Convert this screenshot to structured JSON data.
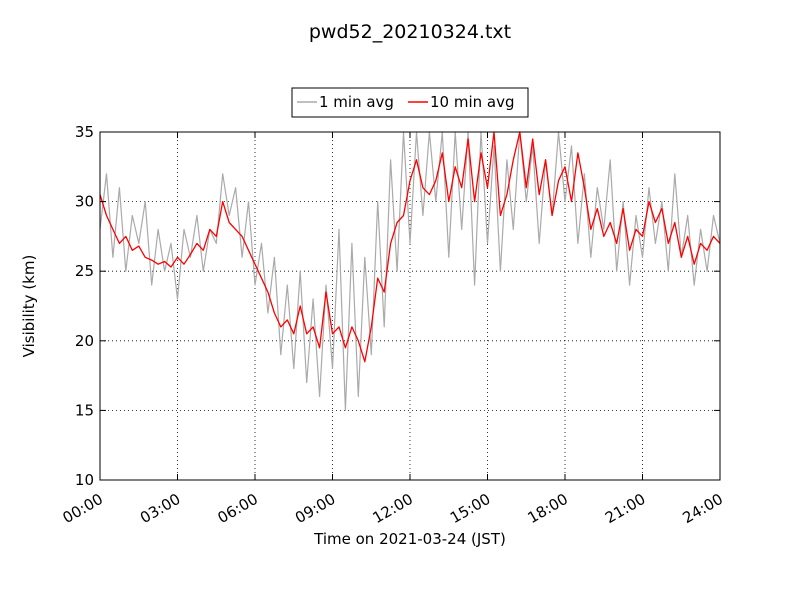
{
  "chart_data": {
    "type": "line",
    "title": "pwd52_20210324.txt",
    "xlabel": "Time on 2021-03-24 (JST)",
    "ylabel": "Visibility (km)",
    "x_unit": "hours",
    "xlim": [
      0,
      24
    ],
    "ylim": [
      10,
      35
    ],
    "x_ticks": [
      0,
      3,
      6,
      9,
      12,
      15,
      18,
      21,
      24
    ],
    "x_tick_labels": [
      "00:00",
      "03:00",
      "06:00",
      "09:00",
      "12:00",
      "15:00",
      "18:00",
      "21:00",
      "24:00"
    ],
    "y_ticks": [
      10,
      15,
      20,
      25,
      30,
      35
    ],
    "y_tick_labels": [
      "10",
      "15",
      "20",
      "25",
      "30",
      "35"
    ],
    "grid": true,
    "legend_placement": "top-center",
    "series": [
      {
        "name": "1 min avg",
        "color": "#aaaaaa",
        "x": [
          0,
          0.25,
          0.5,
          0.75,
          1,
          1.25,
          1.5,
          1.75,
          2,
          2.25,
          2.5,
          2.75,
          3,
          3.25,
          3.5,
          3.75,
          4,
          4.25,
          4.5,
          4.75,
          5,
          5.25,
          5.5,
          5.75,
          6,
          6.25,
          6.5,
          6.75,
          7,
          7.25,
          7.5,
          7.75,
          8,
          8.25,
          8.5,
          8.75,
          9,
          9.25,
          9.5,
          9.75,
          10,
          10.25,
          10.5,
          10.75,
          11,
          11.25,
          11.5,
          11.75,
          12,
          12.25,
          12.5,
          12.75,
          13,
          13.25,
          13.5,
          13.75,
          14,
          14.25,
          14.5,
          14.75,
          15,
          15.25,
          15.5,
          15.75,
          16,
          16.25,
          16.5,
          16.75,
          17,
          17.25,
          17.5,
          17.75,
          18,
          18.25,
          18.5,
          18.75,
          19,
          19.25,
          19.5,
          19.75,
          20,
          20.25,
          20.5,
          20.75,
          21,
          21.25,
          21.5,
          21.75,
          22,
          22.25,
          22.5,
          22.75,
          23,
          23.25,
          23.5,
          23.75,
          24
        ],
        "y": [
          28,
          32,
          26,
          31,
          25,
          29,
          27,
          30,
          24,
          28,
          25,
          27,
          23,
          28,
          26,
          29,
          25,
          28,
          27,
          32,
          29,
          31,
          26,
          30,
          24,
          27,
          22,
          26,
          19,
          24,
          18,
          25,
          17,
          23,
          16,
          24,
          18,
          28,
          15,
          27,
          16,
          26,
          19,
          30,
          21,
          33,
          25,
          35,
          27,
          35,
          29,
          35,
          30,
          35,
          26,
          35,
          28,
          35,
          24,
          35,
          27,
          34,
          25,
          33,
          28,
          35,
          30,
          34,
          27,
          33,
          29,
          35,
          30,
          34,
          27,
          32,
          26,
          31,
          28,
          33,
          25,
          30,
          24,
          29,
          26,
          31,
          27,
          30,
          25,
          32,
          26,
          29,
          24,
          28,
          25,
          29,
          27
        ],
        "line_width": 1.2
      },
      {
        "name": "10 min avg",
        "color": "#ff0000",
        "x": [
          0,
          0.25,
          0.5,
          0.75,
          1,
          1.25,
          1.5,
          1.75,
          2,
          2.25,
          2.5,
          2.75,
          3,
          3.25,
          3.5,
          3.75,
          4,
          4.25,
          4.5,
          4.75,
          5,
          5.25,
          5.5,
          5.75,
          6,
          6.25,
          6.5,
          6.75,
          7,
          7.25,
          7.5,
          7.75,
          8,
          8.25,
          8.5,
          8.75,
          9,
          9.25,
          9.5,
          9.75,
          10,
          10.25,
          10.5,
          10.75,
          11,
          11.25,
          11.5,
          11.75,
          12,
          12.25,
          12.5,
          12.75,
          13,
          13.25,
          13.5,
          13.75,
          14,
          14.25,
          14.5,
          14.75,
          15,
          15.25,
          15.5,
          15.75,
          16,
          16.25,
          16.5,
          16.75,
          17,
          17.25,
          17.5,
          17.75,
          18,
          18.25,
          18.5,
          18.75,
          19,
          19.25,
          19.5,
          19.75,
          20,
          20.25,
          20.5,
          20.75,
          21,
          21.25,
          21.5,
          21.75,
          22,
          22.25,
          22.5,
          22.75,
          23,
          23.25,
          23.5,
          23.75,
          24
        ],
        "y": [
          30.5,
          29,
          28,
          27,
          27.5,
          26.5,
          26.8,
          26,
          25.8,
          25.5,
          25.7,
          25.3,
          26,
          25.5,
          26.2,
          27,
          26.5,
          28,
          27.5,
          30,
          28.5,
          28,
          27.5,
          26.5,
          25.5,
          24.5,
          23.5,
          22,
          21,
          21.5,
          20.5,
          22.5,
          20.5,
          21,
          19.5,
          23.5,
          20.5,
          21,
          19.5,
          21,
          20,
          18.5,
          21,
          24.5,
          23.5,
          27,
          28.5,
          29,
          31.5,
          33,
          31,
          30.5,
          31.5,
          33.5,
          30,
          32.5,
          31,
          34.5,
          30,
          33.5,
          31,
          35,
          29,
          30.5,
          33,
          35,
          31,
          34.5,
          30.5,
          33,
          29,
          31.5,
          32.5,
          30,
          33.5,
          31,
          28,
          29.5,
          27.5,
          28.5,
          27,
          29.5,
          26.5,
          28,
          27.5,
          30,
          28.5,
          29.5,
          27,
          28.5,
          26,
          27.5,
          25.5,
          27,
          26.5,
          27.5,
          27
        ]
      }
    ]
  }
}
